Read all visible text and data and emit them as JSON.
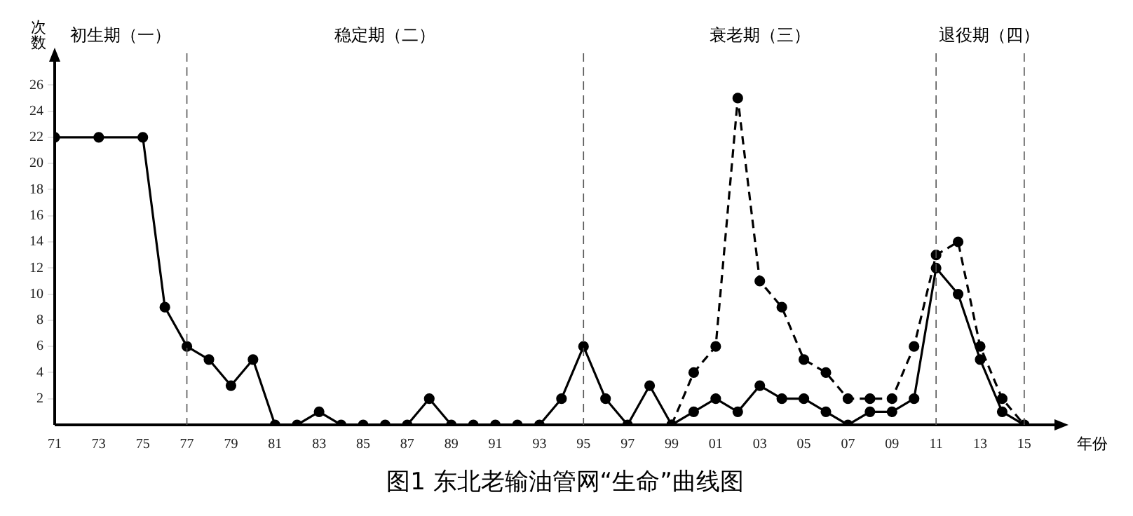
{
  "chart_data": {
    "type": "line",
    "title": "图1 东北老输油管网“生命”曲线图",
    "xlabel": "年份",
    "ylabel": "次数",
    "xlim": [
      1971,
      2016.5
    ],
    "ylim": [
      0,
      28
    ],
    "xticks": [
      {
        "value": 1971,
        "label": "71"
      },
      {
        "value": 1973,
        "label": "73"
      },
      {
        "value": 1975,
        "label": "75"
      },
      {
        "value": 1977,
        "label": "77"
      },
      {
        "value": 1979,
        "label": "79"
      },
      {
        "value": 1981,
        "label": "81"
      },
      {
        "value": 1983,
        "label": "83"
      },
      {
        "value": 1985,
        "label": "85"
      },
      {
        "value": 1987,
        "label": "87"
      },
      {
        "value": 1989,
        "label": "89"
      },
      {
        "value": 1991,
        "label": "91"
      },
      {
        "value": 1993,
        "label": "93"
      },
      {
        "value": 1995,
        "label": "95"
      },
      {
        "value": 1997,
        "label": "97"
      },
      {
        "value": 1999,
        "label": "99"
      },
      {
        "value": 2001,
        "label": "01"
      },
      {
        "value": 2003,
        "label": "03"
      },
      {
        "value": 2005,
        "label": "05"
      },
      {
        "value": 2007,
        "label": "07"
      },
      {
        "value": 2009,
        "label": "09"
      },
      {
        "value": 2011,
        "label": "11"
      },
      {
        "value": 2013,
        "label": "13"
      },
      {
        "value": 2015,
        "label": "15"
      }
    ],
    "yticks": [
      2,
      4,
      6,
      8,
      10,
      12,
      14,
      16,
      18,
      20,
      22,
      24,
      26
    ],
    "grid": false,
    "legend": false,
    "marker": "circle",
    "series": [
      {
        "color": "#000000",
        "line_style": "solid",
        "x": [
          1971,
          1973,
          1975,
          1976,
          1977,
          1978,
          1979,
          1980,
          1981,
          1982,
          1983,
          1984,
          1985,
          1986,
          1987,
          1988,
          1989,
          1990,
          1991,
          1992,
          1993,
          1994,
          1995,
          1996,
          1997,
          1998,
          1999,
          2000,
          2001,
          2002,
          2003,
          2004,
          2005,
          2006,
          2007,
          2008,
          2009,
          2010,
          2011,
          2012,
          2013,
          2014,
          2015
        ],
        "values": [
          22,
          22,
          22,
          9,
          6,
          5,
          3,
          5,
          0,
          0,
          1,
          0,
          0,
          0,
          0,
          2,
          0,
          0,
          0,
          0,
          0,
          2,
          6,
          2,
          0,
          3,
          0,
          1,
          2,
          1,
          3,
          2,
          2,
          1,
          0,
          1,
          1,
          2,
          12,
          10,
          5,
          1,
          0
        ]
      },
      {
        "color": "#000000",
        "line_style": "dashed",
        "x": [
          1999,
          2000,
          2001,
          2002,
          2003,
          2004,
          2005,
          2006,
          2007,
          2008,
          2009,
          2010,
          2011,
          2012,
          2013,
          2014,
          2015
        ],
        "values": [
          0,
          4,
          6,
          25,
          11,
          9,
          5,
          4,
          2,
          2,
          2,
          6,
          13,
          14,
          6,
          2,
          0
        ]
      }
    ],
    "ref_lines": [
      {
        "axis": "x",
        "value": 1977,
        "line_style": "dashed"
      },
      {
        "axis": "x",
        "value": 1995,
        "line_style": "dashed"
      },
      {
        "axis": "x",
        "value": 2011,
        "line_style": "dashed"
      },
      {
        "axis": "x",
        "value": 2015,
        "line_style": "dashed"
      }
    ],
    "annotations": [
      "初生期（一）",
      "稳定期（二）",
      "衰老期（三）",
      "退役期（四）"
    ]
  }
}
